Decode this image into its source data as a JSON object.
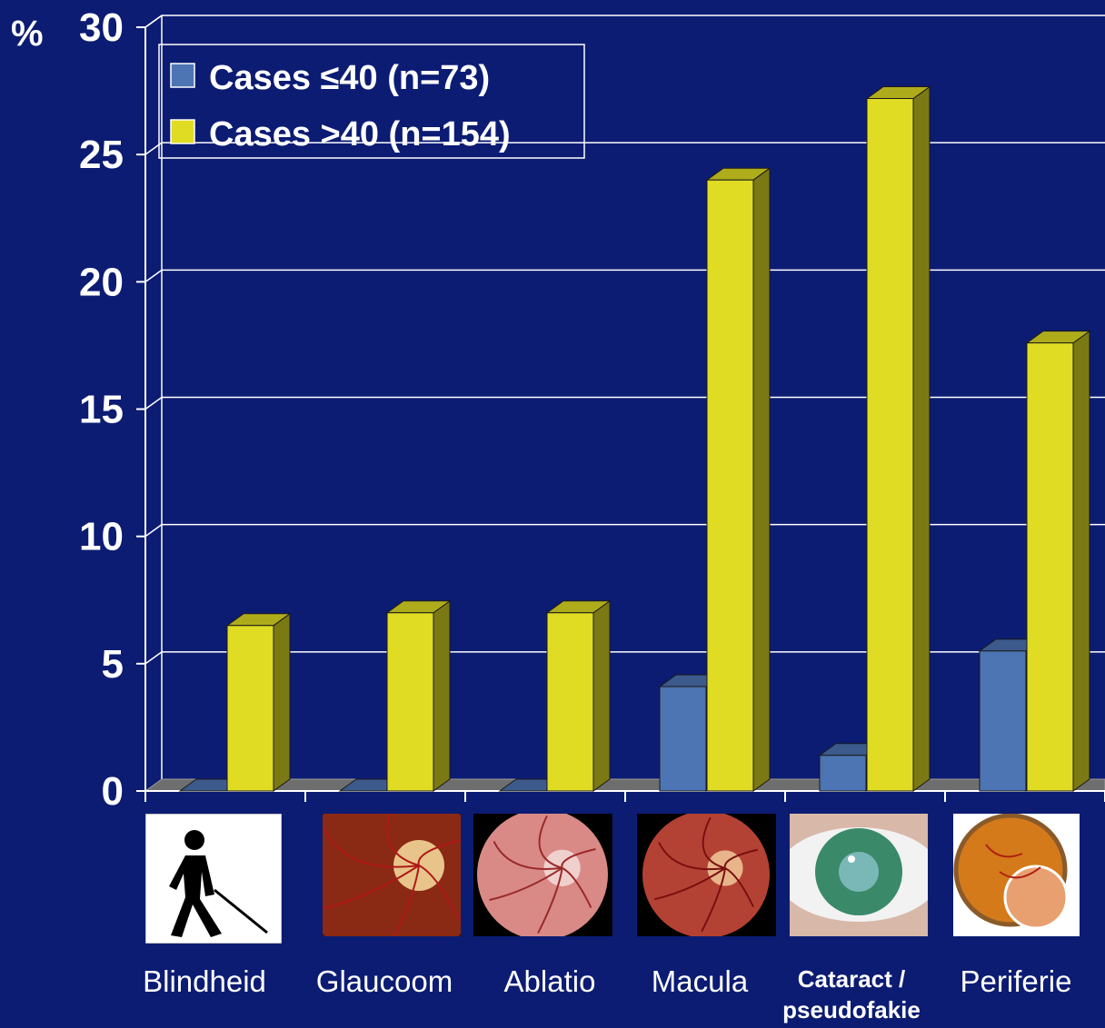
{
  "chart_data": {
    "type": "bar",
    "ylabel": "%",
    "ylim": [
      0,
      30
    ],
    "yticks": [
      0,
      5,
      10,
      15,
      20,
      25,
      30
    ],
    "grid": true,
    "legend_position": "top-left",
    "categories": [
      "Blindheid",
      "Glaucoom",
      "Ablatio",
      "Macula",
      "Cataract / pseudofakie",
      "Periferie"
    ],
    "category_lines": [
      [
        "Blindheid"
      ],
      [
        "Glaucoom"
      ],
      [
        "Ablatio"
      ],
      [
        "Macula"
      ],
      [
        "Cataract /",
        "pseudofakie"
      ],
      [
        "Periferie"
      ]
    ],
    "category_icons": [
      "blind-person-icon",
      "optic-disc-photo",
      "retina-photo",
      "macula-photo",
      "cataract-eye-photo",
      "retina-periphery-drawing"
    ],
    "series": [
      {
        "name": "Cases ≤40 (n=73)",
        "values": [
          0,
          0,
          0,
          4.1,
          1.4,
          5.5
        ],
        "color": "#4d74b3"
      },
      {
        "name": "Cases >40 (n=154)",
        "values": [
          6.5,
          7.0,
          7.0,
          24.0,
          27.2,
          17.6
        ],
        "color": "#e0dc24"
      }
    ],
    "colors": {
      "background": "#0c1c73",
      "grid": "#ffffff",
      "text": "#ffffff"
    }
  }
}
